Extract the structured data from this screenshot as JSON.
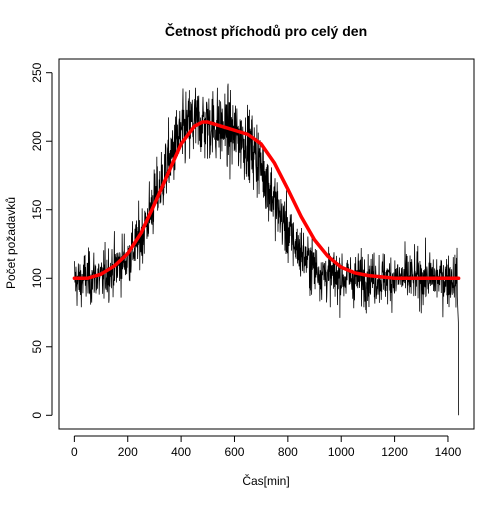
{
  "chart_data": {
    "type": "line",
    "title": "Četnost příchodů pro celý den",
    "xlabel": "Čas[min]",
    "ylabel": "Počet požadavků",
    "xlim": [
      0,
      1440
    ],
    "ylim": [
      0,
      250
    ],
    "xticks": [
      0,
      200,
      400,
      600,
      800,
      1000,
      1200,
      1400
    ],
    "yticks": [
      0,
      50,
      100,
      150,
      200,
      250
    ],
    "grid": false,
    "series": [
      {
        "kind": "raw",
        "color": "#000000",
        "x": [
          0,
          20,
          40,
          60,
          80,
          100,
          120,
          140,
          160,
          180,
          200,
          220,
          240,
          260,
          280,
          300,
          320,
          340,
          360,
          380,
          400,
          420,
          440,
          460,
          480,
          500,
          520,
          540,
          560,
          580,
          600,
          620,
          640,
          660,
          680,
          700,
          720,
          740,
          760,
          780,
          800,
          820,
          840,
          860,
          880,
          900,
          920,
          940,
          960,
          980,
          1000,
          1020,
          1040,
          1060,
          1080,
          1100,
          1120,
          1140,
          1160,
          1180,
          1200,
          1220,
          1240,
          1260,
          1280,
          1300,
          1320,
          1340,
          1360,
          1380,
          1400,
          1420,
          1435,
          1440
        ],
        "y": [
          100,
          96,
          101,
          99,
          103,
          98,
          104,
          106,
          109,
          112,
          115,
          121,
          127,
          135,
          146,
          157,
          166,
          178,
          188,
          197,
          204,
          209,
          213,
          214,
          214,
          213,
          212,
          210,
          209,
          207,
          205,
          203,
          200,
          196,
          190,
          182,
          172,
          161,
          151,
          142,
          134,
          127,
          121,
          116,
          112,
          108,
          105,
          103,
          102,
          101,
          101,
          100,
          100,
          100,
          100,
          100,
          100,
          100,
          100,
          100,
          100,
          100,
          100,
          100,
          100,
          100,
          100,
          100,
          100,
          100,
          100,
          100,
          100,
          0
        ]
      },
      {
        "kind": "smooth",
        "color": "#ff0000",
        "x": [
          0,
          50,
          100,
          150,
          200,
          250,
          300,
          350,
          400,
          450,
          480,
          500,
          550,
          600,
          650,
          700,
          750,
          800,
          850,
          900,
          950,
          1000,
          1050,
          1100,
          1150,
          1200,
          1250,
          1300,
          1350,
          1400,
          1440
        ],
        "y": [
          100,
          100,
          103,
          109,
          118,
          133,
          154,
          176,
          198,
          211,
          214,
          214,
          211,
          208,
          205,
          198,
          184,
          165,
          145,
          128,
          116,
          108,
          104,
          102,
          101,
          100,
          100,
          100,
          100,
          100,
          100
        ]
      }
    ]
  }
}
